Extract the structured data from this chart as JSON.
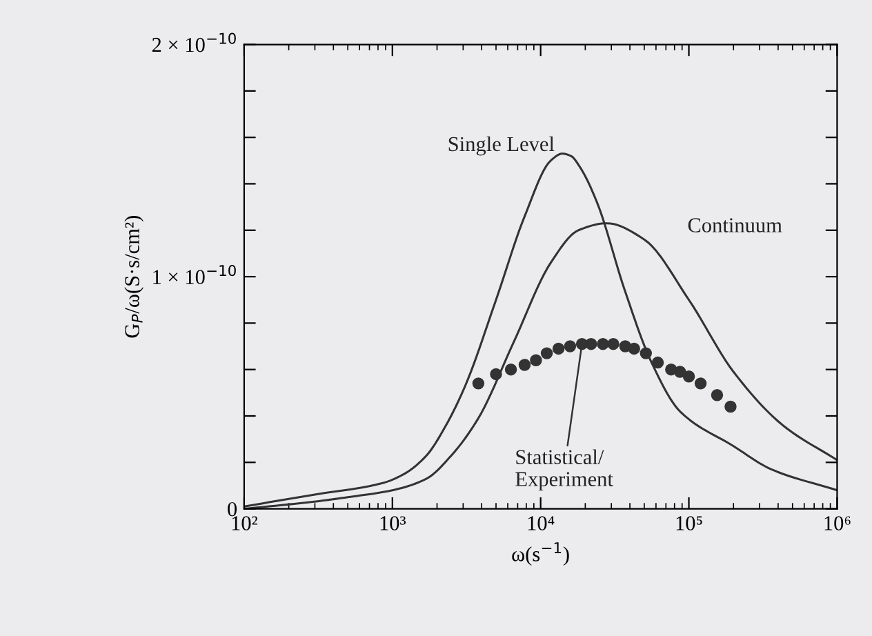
{
  "chart_data": {
    "type": "line",
    "xlabel": "ω(s$^{−1}$)",
    "ylabel": "G$_{P}$/ω(S·s/cm²)",
    "log": "x",
    "grid": false,
    "legend": false,
    "xlim": [
      100,
      1000000
    ],
    "xticks": [
      {
        "value": 100,
        "label": "10²"
      },
      {
        "value": 1000,
        "label": "10³"
      },
      {
        "value": 10000,
        "label": "10⁴"
      },
      {
        "value": 100000,
        "label": "10⁵"
      },
      {
        "value": 1000000,
        "label": "10⁶"
      }
    ],
    "ylim": [
      0,
      2e-10
    ],
    "yticks": [
      0,
      {
        "value": 2e-11,
        "label": null
      },
      {
        "value": 4e-11,
        "label": null
      },
      {
        "value": 6e-11,
        "label": null
      },
      {
        "value": 8e-11,
        "label": null
      },
      {
        "value": 1e-10,
        "label": "1 × 10$^{−10}$"
      },
      {
        "value": 1.2e-10,
        "label": null
      },
      {
        "value": 1.4e-10,
        "label": null
      },
      {
        "value": 1.6e-10,
        "label": null
      },
      {
        "value": 1.8e-10,
        "label": null
      },
      {
        "value": 2e-10,
        "label": "2 × 10$^{−10}$"
      }
    ],
    "series": [
      {
        "name": "Single Level",
        "color": "#333333",
        "marker": "none",
        "line_style": "solid",
        "x": [
          100,
          290,
          850,
          1200,
          1700,
          2300,
          3100,
          5000,
          7800,
          11700,
          14000,
          16000,
          18500,
          24000,
          37000,
          56000,
          87000,
          200000,
          360000,
          1000000
        ],
        "values": [
          1e-12,
          6e-12,
          1.1e-11,
          1.5e-11,
          2.3e-11,
          3.6e-11,
          5.3e-11,
          9e-11,
          1.26e-10,
          1.5e-10,
          1.53e-10,
          1.52e-10,
          1.47e-10,
          1.32e-10,
          9.4e-11,
          6.3e-11,
          4.2e-11,
          2.7e-11,
          1.7e-11,
          8e-12
        ]
      },
      {
        "name": "Continuum",
        "color": "#333333",
        "marker": "none",
        "line_style": "solid",
        "x": [
          100,
          290,
          500,
          1000,
          1700,
          2500,
          3800,
          6600,
          11700,
          18000,
          28000,
          50000,
          100000,
          200000,
          430000,
          1000000
        ],
        "values": [
          0,
          3e-12,
          5e-12,
          8e-12,
          1.3e-11,
          2.3e-11,
          3.9e-11,
          7.2e-11,
          1.06e-10,
          1.2e-10,
          1.23e-10,
          1.16e-10,
          9e-11,
          5.9e-11,
          3.6e-11,
          2.1e-11
        ]
      },
      {
        "name": "Statistical/\nExperiment",
        "type": "scatter",
        "color": "#333333",
        "marker": "circle",
        "x": [
          3800,
          5000,
          6300,
          7800,
          9300,
          11000,
          13200,
          15800,
          19000,
          21900,
          26300,
          30900,
          37200,
          42700,
          51300,
          61700,
          75900,
          87100,
          100000,
          120000,
          155000,
          191000
        ],
        "values": [
          5.4e-11,
          5.8e-11,
          6e-11,
          6.2e-11,
          6.4e-11,
          6.7e-11,
          6.9e-11,
          7e-11,
          7.1e-11,
          7.1e-11,
          7.1e-11,
          7.1e-11,
          7e-11,
          6.9e-11,
          6.7e-11,
          6.3e-11,
          6e-11,
          5.9e-11,
          5.7e-11,
          5.4e-11,
          4.9e-11,
          4.4e-11
        ]
      }
    ]
  }
}
